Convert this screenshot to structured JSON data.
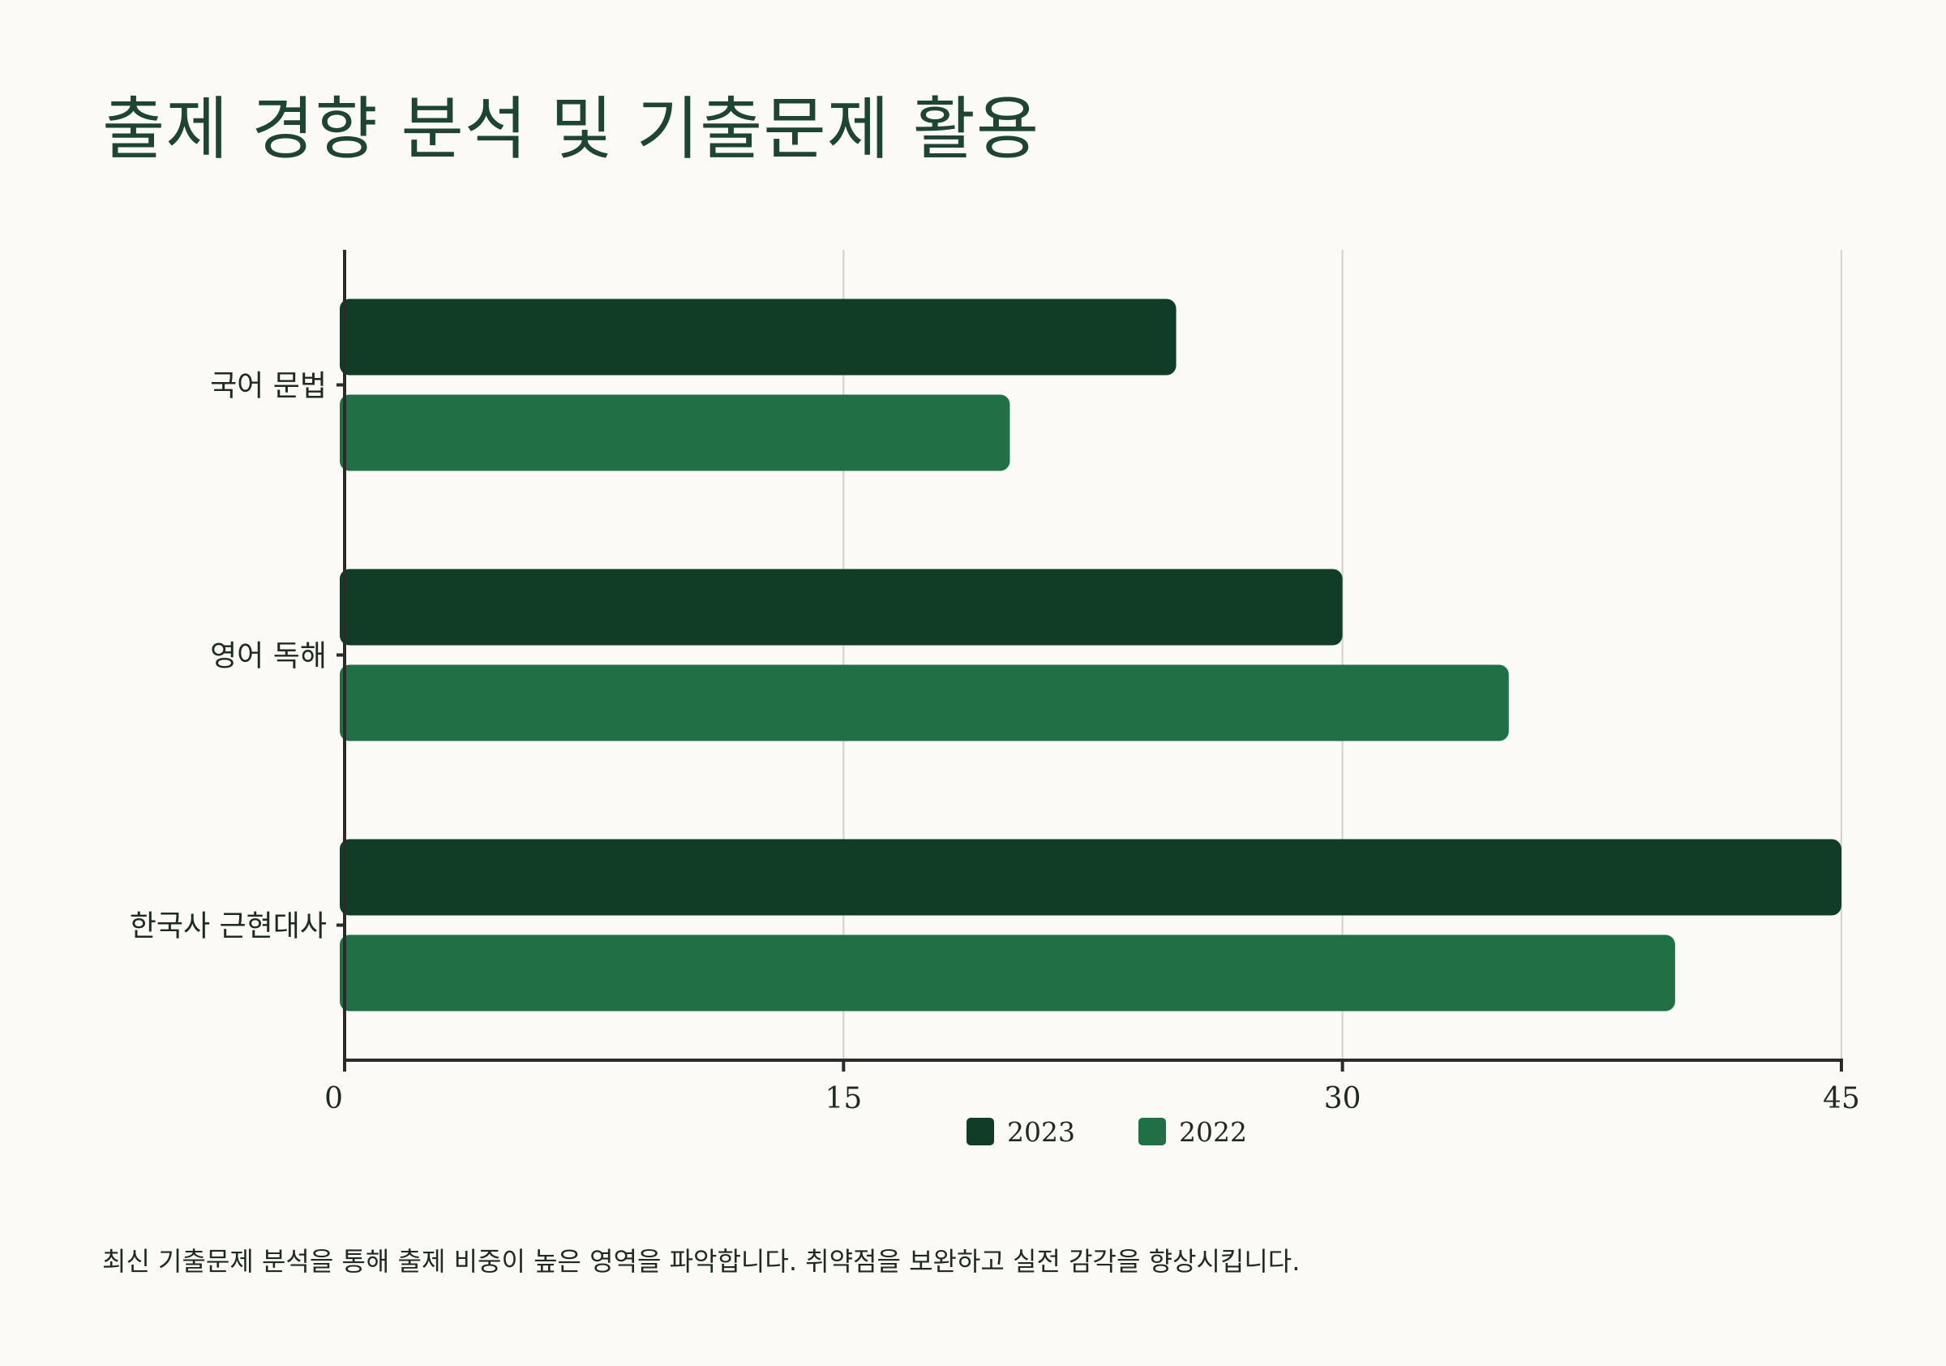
{
  "title": "출제 경향 분석 및 기출문제 활용",
  "caption": "최신 기출문제 분석을 통해 출제 비중이 높은 영역을 파악합니다. 취약점을 보완하고 실전 감각을 향상시킵니다.",
  "chart_data": {
    "type": "bar",
    "orientation": "horizontal",
    "categories": [
      "국어 문법",
      "영어 독해",
      "한국사 근현대사"
    ],
    "series": [
      {
        "name": "2023",
        "values": [
          25,
          30,
          45
        ],
        "color": "#113d27"
      },
      {
        "name": "2022",
        "values": [
          20,
          35,
          40
        ],
        "color": "#217045"
      }
    ],
    "xlim": [
      0,
      45
    ],
    "xticks": [
      0,
      15,
      30,
      45
    ],
    "xlabel": "",
    "ylabel": "",
    "grid": "vertical",
    "legend": "bottom-center"
  }
}
